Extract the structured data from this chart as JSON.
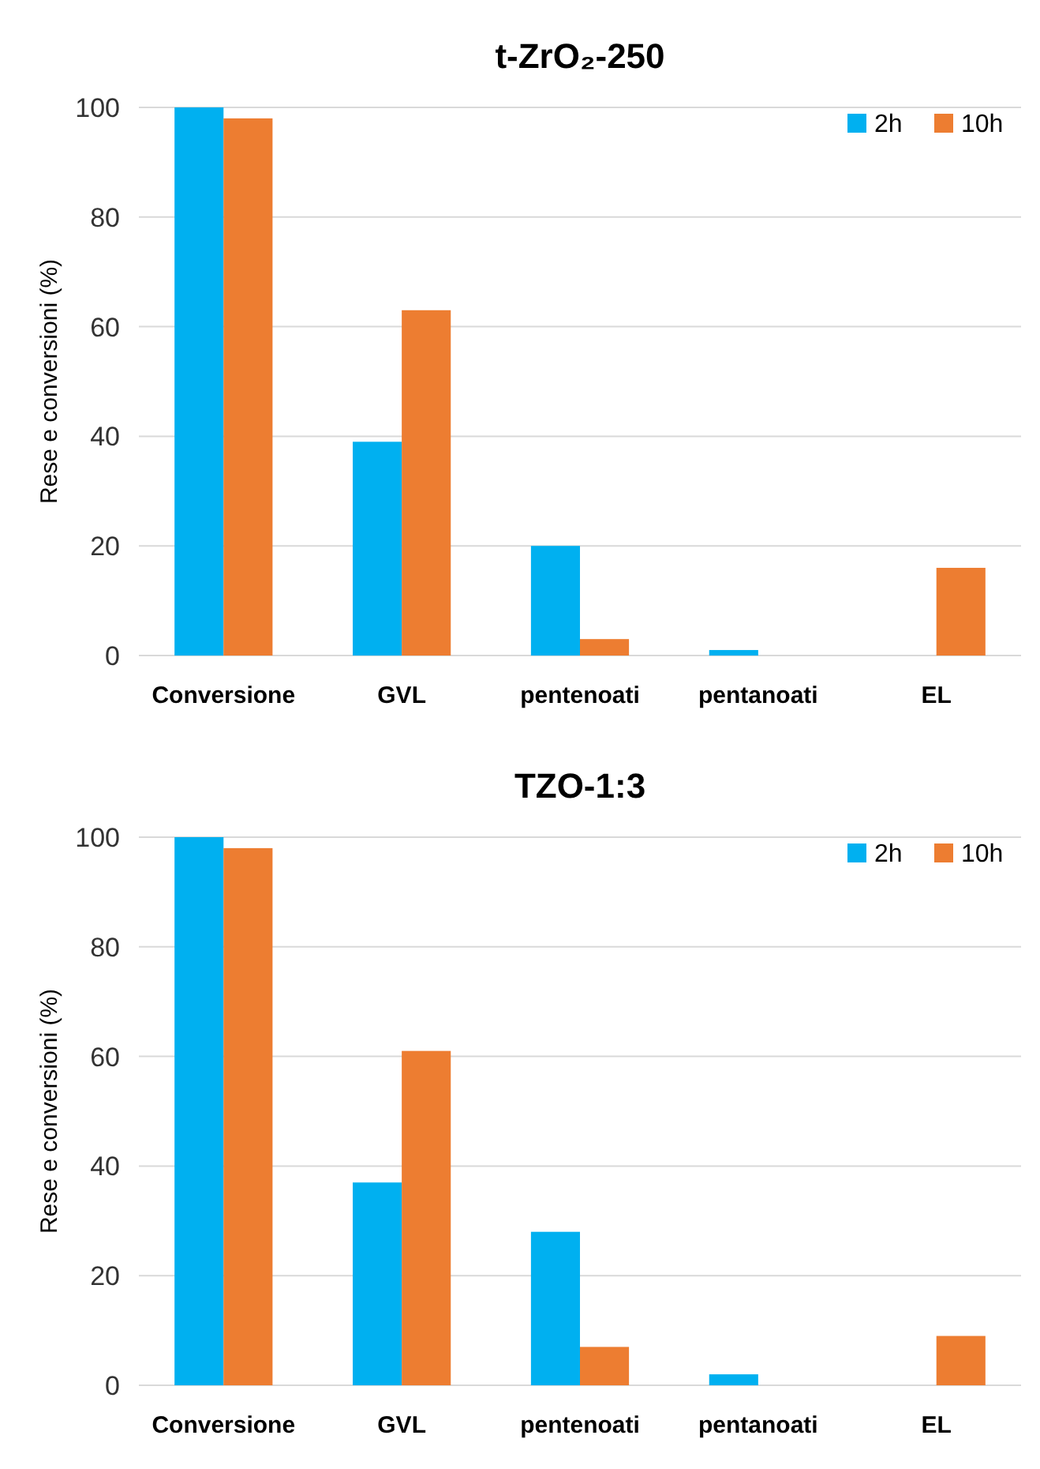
{
  "chart_data": [
    {
      "type": "bar",
      "title": "t-ZrO₂-250",
      "ylabel": "Rese e conversioni  (%)",
      "categories": [
        "Conversione",
        "GVL",
        "pentenoati",
        "pentanoati",
        "EL"
      ],
      "series": [
        {
          "name": "2h",
          "color": "#00b0f0",
          "values": [
            100,
            39,
            20,
            1,
            0
          ]
        },
        {
          "name": "10h",
          "color": "#ed7d31",
          "values": [
            98,
            63,
            3,
            0,
            16
          ]
        }
      ],
      "ylim": [
        0,
        100
      ],
      "yticks": [
        0,
        20,
        40,
        60,
        80,
        100
      ],
      "grid": "y",
      "legend": "top right"
    },
    {
      "type": "bar",
      "title": "TZO-1:3",
      "ylabel": "Rese e conversioni  (%)",
      "categories": [
        "Conversione",
        "GVL",
        "pentenoati",
        "pentanoati",
        "EL"
      ],
      "series": [
        {
          "name": "2h",
          "color": "#00b0f0",
          "values": [
            100,
            37,
            28,
            2,
            0
          ]
        },
        {
          "name": "10h",
          "color": "#ed7d31",
          "values": [
            98,
            61,
            7,
            0,
            9
          ]
        }
      ],
      "ylim": [
        0,
        100
      ],
      "yticks": [
        0,
        20,
        40,
        60,
        80,
        100
      ],
      "grid": "y",
      "legend": "top right"
    }
  ]
}
